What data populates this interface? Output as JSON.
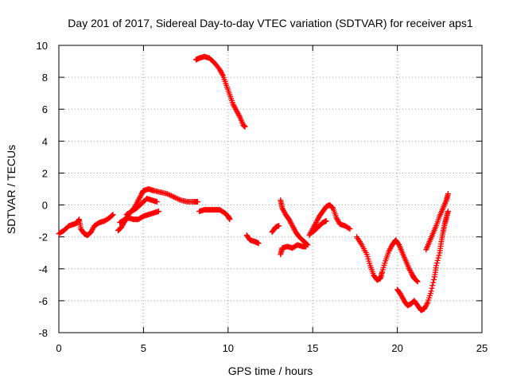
{
  "chart_data": {
    "type": "scatter",
    "title": "Day 201 of 2017, Sidereal Day-to-day VTEC variation (SDTVAR) for receiver aps1",
    "xlabel": "GPS time / hours",
    "ylabel": "SDTVAR / TECUs",
    "xlim": [
      0,
      25
    ],
    "ylim": [
      -8,
      10
    ],
    "x_ticks": [
      0,
      5,
      10,
      15,
      20,
      25
    ],
    "y_ticks": [
      -8,
      -6,
      -4,
      -2,
      0,
      2,
      4,
      6,
      8,
      10
    ],
    "grid": true,
    "marker": "+",
    "color": "#ff0000",
    "series": [
      {
        "name": "seg1",
        "points": [
          [
            0.0,
            -1.8
          ],
          [
            0.3,
            -1.6
          ],
          [
            0.6,
            -1.3
          ],
          [
            0.9,
            -1.2
          ],
          [
            1.1,
            -1.1
          ],
          [
            1.2,
            -0.9
          ],
          [
            1.3,
            -1.5
          ],
          [
            1.5,
            -1.8
          ],
          [
            1.7,
            -1.9
          ],
          [
            1.9,
            -1.7
          ],
          [
            2.1,
            -1.3
          ],
          [
            2.4,
            -1.1
          ],
          [
            2.7,
            -1.0
          ],
          [
            3.0,
            -0.8
          ],
          [
            3.2,
            -0.6
          ]
        ]
      },
      {
        "name": "seg2",
        "points": [
          [
            3.5,
            -1.6
          ],
          [
            3.7,
            -1.4
          ],
          [
            3.9,
            -1.0
          ],
          [
            4.1,
            -0.8
          ],
          [
            4.4,
            -0.9
          ],
          [
            4.7,
            -0.9
          ],
          [
            5.0,
            -0.7
          ],
          [
            5.3,
            -0.6
          ],
          [
            5.6,
            -0.5
          ],
          [
            5.9,
            -0.4
          ]
        ]
      },
      {
        "name": "seg3",
        "points": [
          [
            3.6,
            -1.1
          ],
          [
            3.9,
            -0.9
          ],
          [
            4.2,
            -0.5
          ],
          [
            4.5,
            -0.1
          ],
          [
            4.7,
            0.3
          ],
          [
            4.9,
            0.7
          ],
          [
            5.0,
            0.9
          ],
          [
            5.3,
            1.0
          ],
          [
            5.6,
            0.9
          ],
          [
            6.0,
            0.8
          ],
          [
            6.4,
            0.7
          ],
          [
            6.8,
            0.5
          ],
          [
            7.2,
            0.3
          ],
          [
            7.6,
            0.2
          ],
          [
            8.0,
            0.2
          ],
          [
            8.2,
            0.2
          ]
        ]
      },
      {
        "name": "seg4",
        "points": [
          [
            4.0,
            -0.6
          ],
          [
            4.3,
            -0.4
          ],
          [
            4.6,
            -0.2
          ],
          [
            4.9,
            0.1
          ],
          [
            5.2,
            0.4
          ],
          [
            5.5,
            0.3
          ],
          [
            5.8,
            0.2
          ]
        ]
      },
      {
        "name": "seg5",
        "points": [
          [
            8.3,
            -0.4
          ],
          [
            8.6,
            -0.3
          ],
          [
            8.9,
            -0.3
          ],
          [
            9.2,
            -0.3
          ],
          [
            9.5,
            -0.3
          ],
          [
            9.8,
            -0.5
          ],
          [
            10.0,
            -0.7
          ],
          [
            10.1,
            -0.9
          ]
        ]
      },
      {
        "name": "seg6",
        "points": [
          [
            8.1,
            9.1
          ],
          [
            8.3,
            9.2
          ],
          [
            8.6,
            9.3
          ],
          [
            8.9,
            9.2
          ],
          [
            9.2,
            8.9
          ],
          [
            9.5,
            8.5
          ],
          [
            9.7,
            8.1
          ],
          [
            9.9,
            7.5
          ],
          [
            10.1,
            6.9
          ],
          [
            10.3,
            6.3
          ],
          [
            10.5,
            5.9
          ],
          [
            10.7,
            5.5
          ],
          [
            10.9,
            5.0
          ],
          [
            11.0,
            4.9
          ]
        ]
      },
      {
        "name": "seg7",
        "points": [
          [
            11.1,
            -1.9
          ],
          [
            11.3,
            -2.2
          ],
          [
            11.6,
            -2.3
          ],
          [
            11.8,
            -2.4
          ]
        ]
      },
      {
        "name": "seg8",
        "points": [
          [
            12.6,
            -1.7
          ],
          [
            12.8,
            -1.4
          ],
          [
            13.0,
            -1.3
          ]
        ]
      },
      {
        "name": "seg9",
        "points": [
          [
            13.1,
            0.3
          ],
          [
            13.2,
            -0.2
          ],
          [
            13.4,
            -0.6
          ],
          [
            13.6,
            -0.9
          ],
          [
            13.8,
            -1.3
          ],
          [
            14.0,
            -1.7
          ],
          [
            14.2,
            -2.0
          ],
          [
            14.5,
            -2.3
          ],
          [
            14.7,
            -2.5
          ]
        ]
      },
      {
        "name": "seg10",
        "points": [
          [
            13.1,
            -3.1
          ],
          [
            13.2,
            -2.7
          ],
          [
            13.5,
            -2.6
          ],
          [
            13.8,
            -2.7
          ],
          [
            14.1,
            -2.5
          ],
          [
            14.4,
            -2.6
          ],
          [
            14.6,
            -2.6
          ]
        ]
      },
      {
        "name": "seg11",
        "points": [
          [
            14.8,
            -1.9
          ],
          [
            15.0,
            -1.5
          ],
          [
            15.2,
            -1.1
          ],
          [
            15.4,
            -0.7
          ],
          [
            15.6,
            -0.4
          ],
          [
            15.8,
            -0.1
          ],
          [
            16.0,
            0.0
          ],
          [
            16.2,
            -0.2
          ],
          [
            16.4,
            -0.8
          ],
          [
            16.6,
            -1.2
          ],
          [
            16.9,
            -1.3
          ],
          [
            17.2,
            -1.5
          ]
        ]
      },
      {
        "name": "seg12",
        "points": [
          [
            15.0,
            -1.7
          ],
          [
            15.2,
            -1.5
          ],
          [
            15.4,
            -1.3
          ],
          [
            15.6,
            -1.1
          ],
          [
            15.8,
            -1.0
          ]
        ]
      },
      {
        "name": "seg13",
        "points": [
          [
            17.6,
            -2.0
          ],
          [
            17.9,
            -2.5
          ],
          [
            18.2,
            -3.1
          ],
          [
            18.4,
            -3.8
          ],
          [
            18.6,
            -4.4
          ],
          [
            18.8,
            -4.7
          ],
          [
            19.0,
            -4.6
          ],
          [
            19.1,
            -4.2
          ],
          [
            19.3,
            -3.5
          ],
          [
            19.5,
            -2.9
          ],
          [
            19.7,
            -2.5
          ],
          [
            19.9,
            -2.2
          ],
          [
            20.1,
            -2.5
          ],
          [
            20.3,
            -3.0
          ],
          [
            20.5,
            -3.5
          ],
          [
            20.7,
            -4.0
          ],
          [
            20.9,
            -4.4
          ],
          [
            21.0,
            -4.6
          ],
          [
            21.2,
            -4.8
          ]
        ]
      },
      {
        "name": "seg14",
        "points": [
          [
            20.0,
            -5.3
          ],
          [
            20.2,
            -5.6
          ],
          [
            20.4,
            -6.0
          ],
          [
            20.6,
            -6.3
          ],
          [
            20.8,
            -6.2
          ],
          [
            21.0,
            -6.0
          ],
          [
            21.2,
            -6.3
          ],
          [
            21.4,
            -6.6
          ],
          [
            21.6,
            -6.5
          ],
          [
            21.8,
            -6.1
          ],
          [
            22.0,
            -5.4
          ],
          [
            22.2,
            -4.5
          ],
          [
            22.3,
            -3.8
          ],
          [
            22.5,
            -3.0
          ],
          [
            22.6,
            -2.3
          ],
          [
            22.7,
            -1.7
          ],
          [
            22.8,
            -1.2
          ],
          [
            22.9,
            -0.8
          ],
          [
            23.0,
            -0.4
          ]
        ]
      },
      {
        "name": "seg15",
        "points": [
          [
            21.7,
            -2.8
          ],
          [
            21.9,
            -2.3
          ],
          [
            22.1,
            -1.8
          ],
          [
            22.3,
            -1.3
          ],
          [
            22.5,
            -0.7
          ],
          [
            22.7,
            -0.2
          ],
          [
            22.9,
            0.3
          ],
          [
            23.0,
            0.7
          ]
        ]
      }
    ]
  }
}
